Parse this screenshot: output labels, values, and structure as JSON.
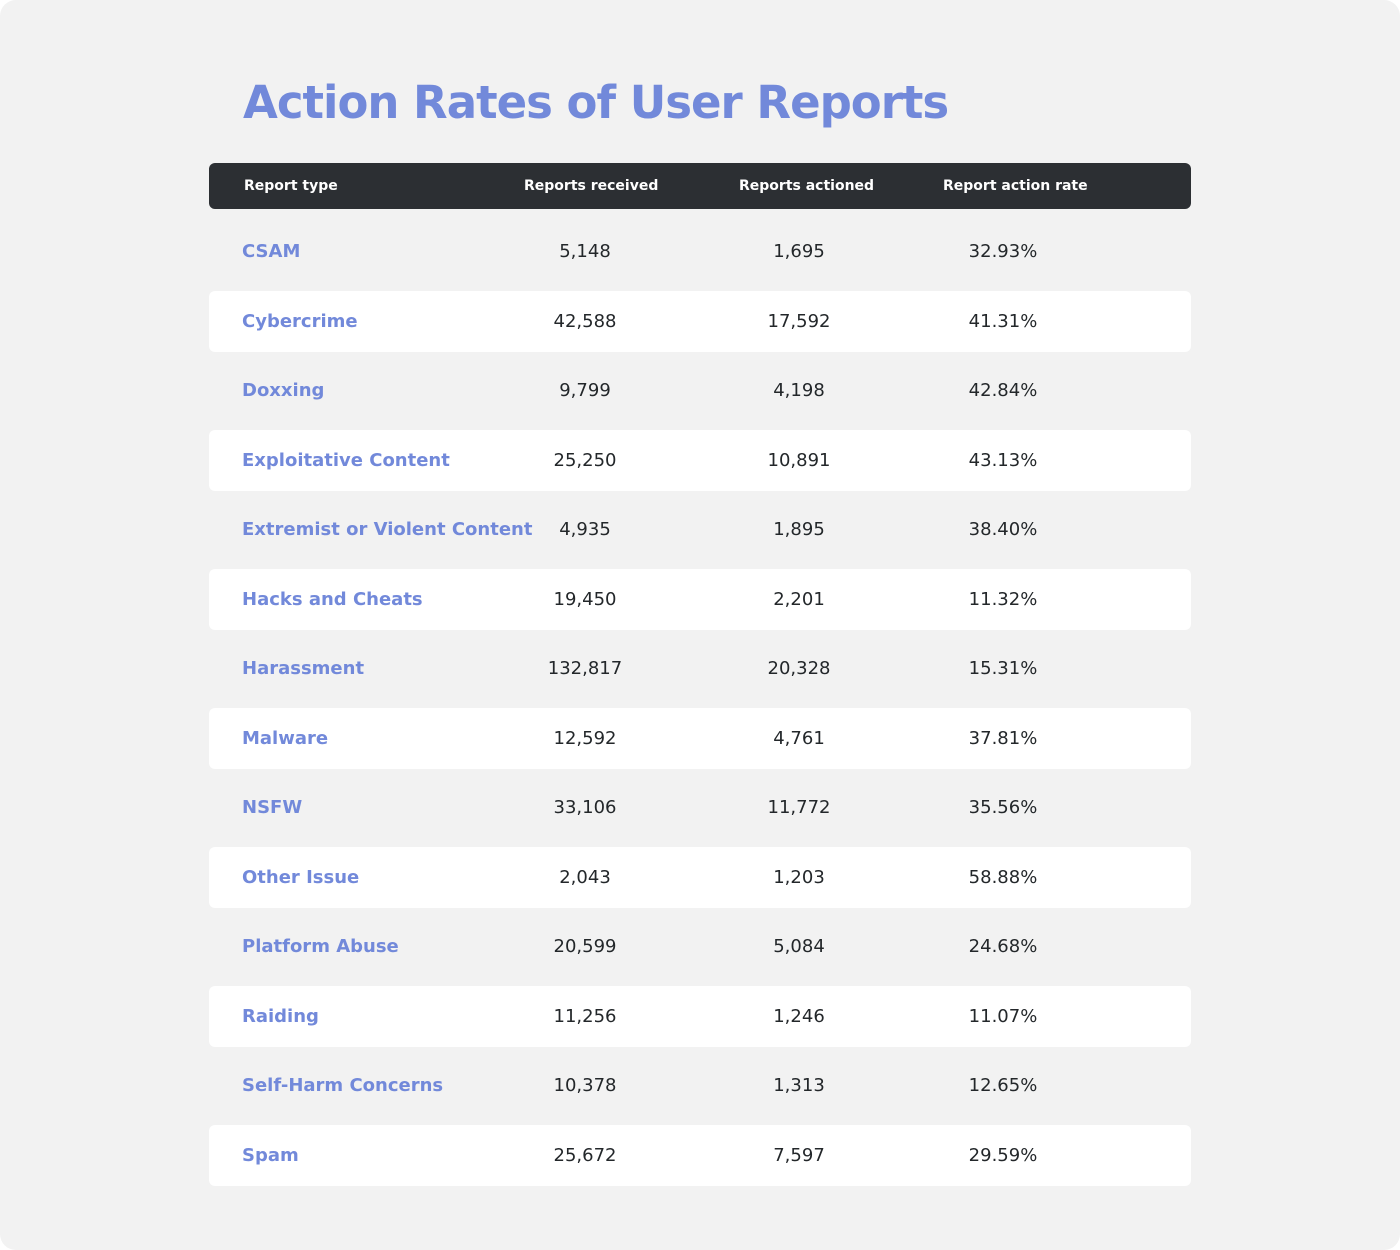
{
  "title": "Action Rates of User Reports",
  "table": {
    "headers": [
      "Report type",
      "Reports received",
      "Reports actioned",
      "Report action rate"
    ],
    "rows": [
      [
        "CSAM",
        "5,148",
        "1,695",
        "32.93%"
      ],
      [
        "Cybercrime",
        "42,588",
        "17,592",
        "41.31%"
      ],
      [
        "Doxxing",
        "9,799",
        "4,198",
        "42.84%"
      ],
      [
        "Exploitative Content",
        "25,250",
        "10,891",
        "43.13%"
      ],
      [
        "Extremist or Violent Content",
        "4,935",
        "1,895",
        "38.40%"
      ],
      [
        "Hacks and Cheats",
        "19,450",
        "2,201",
        "11.32%"
      ],
      [
        "Harassment",
        "132,817",
        "20,328",
        "15.31%"
      ],
      [
        "Malware",
        "12,592",
        "4,761",
        "37.81%"
      ],
      [
        "NSFW",
        "33,106",
        "11,772",
        "35.56%"
      ],
      [
        "Other Issue",
        "2,043",
        "1,203",
        "58.88%"
      ],
      [
        "Platform Abuse",
        "20,599",
        "5,084",
        "24.68%"
      ],
      [
        "Raiding",
        "11,256",
        "1,246",
        "11.07%"
      ],
      [
        "Self-Harm Concerns",
        "10,378",
        "1,313",
        "12.65%"
      ],
      [
        "Spam",
        "25,672",
        "7,597",
        "29.59%"
      ]
    ]
  }
}
